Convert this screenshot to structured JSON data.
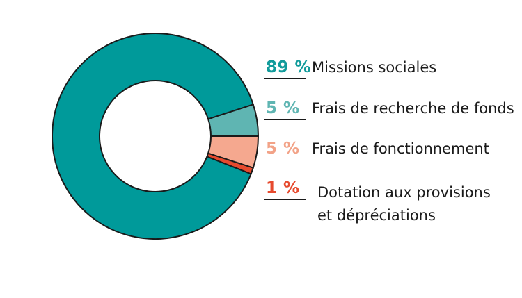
{
  "chart_data": {
    "type": "pie",
    "style": "donut",
    "legend_position": "right",
    "slices": [
      {
        "percent_label": "89 %",
        "value": 89,
        "label": "Missions sociales",
        "color": "#009a9a",
        "text_color": "#119b9b"
      },
      {
        "percent_label": "5 %",
        "value": 5,
        "label": "Frais de recherche de fonds",
        "color": "#5fb5b2",
        "text_color": "#5fb5b2"
      },
      {
        "percent_label": "5 %",
        "value": 5,
        "label": "Frais de fonctionnement",
        "color": "#f5a88f",
        "text_color": "#f2a287"
      },
      {
        "percent_label": "1 %",
        "value": 1,
        "label": "Dotation aux provisions\net dépréciations",
        "color": "#e64a2e",
        "text_color": "#e64a2e"
      }
    ]
  }
}
